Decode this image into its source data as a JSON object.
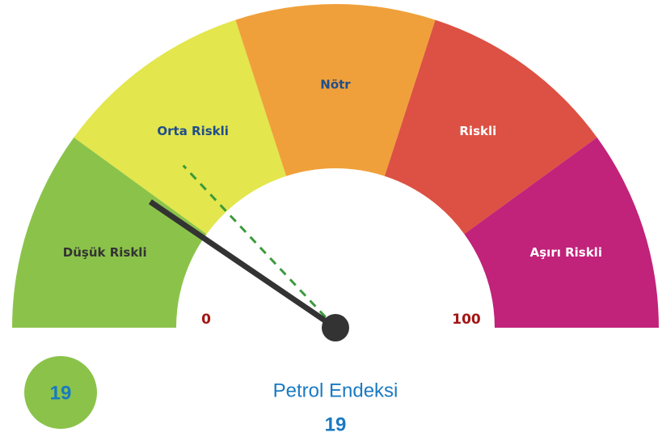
{
  "chart_data": {
    "type": "gauge",
    "title": "Petrol Endeksi",
    "min": 0,
    "max": 100,
    "value": 19,
    "reference_value": 26,
    "bands": [
      {
        "name": "Düşük Riskli",
        "color": "#8bc34a",
        "label_color": "#333333",
        "from": 0,
        "to": 20
      },
      {
        "name": "Orta Riskli",
        "color": "#e3e64c",
        "label_color": "#1f4e8c",
        "from": 20,
        "to": 40
      },
      {
        "name": "Nötr",
        "color": "#f0a03a",
        "label_color": "#1f4e8c",
        "from": 40,
        "to": 60
      },
      {
        "name": "Riskli",
        "color": "#dc5143",
        "label_color": "#ffffff",
        "from": 60,
        "to": 80
      },
      {
        "name": "Aşırı Riskli",
        "color": "#c1227a",
        "label_color": "#ffffff",
        "from": 80,
        "to": 100
      }
    ],
    "needle_color": "#333333",
    "reference_color": "#3a9a3a",
    "badge_color": "#8bc34a"
  }
}
